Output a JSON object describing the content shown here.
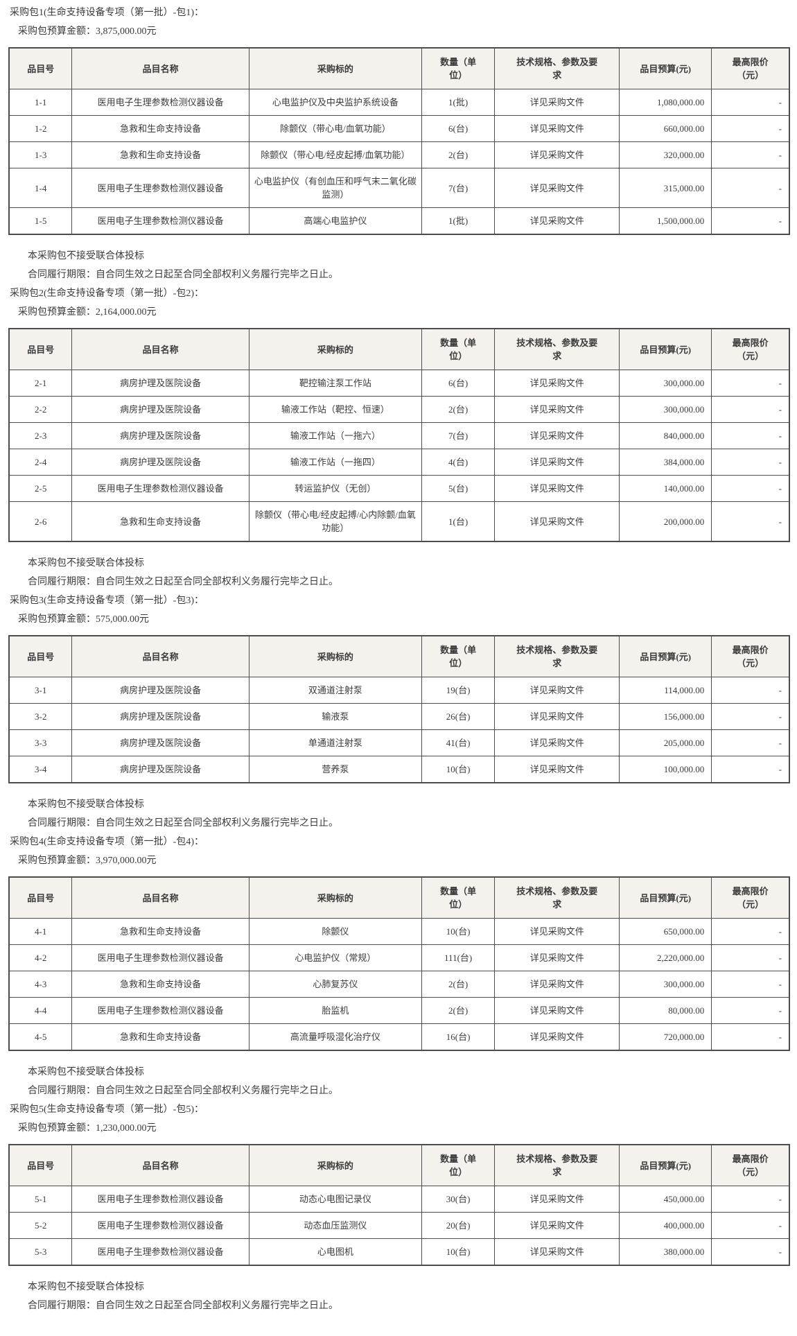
{
  "colors": {
    "header_bg": "#f5f1ec",
    "border": "#4c4c4c",
    "text": "#3b3b3b"
  },
  "columns": [
    {
      "label": "品目号",
      "width": "7.7%",
      "align": "center"
    },
    {
      "label": "品目名称",
      "width": "23.2%",
      "align": "center"
    },
    {
      "label": "采购标的",
      "width": "22.6%",
      "align": "center"
    },
    {
      "label": "数量（单\n位）",
      "width": "9.1%",
      "align": "center"
    },
    {
      "label": "技术规格、参数及要\n求",
      "width": "16.1%",
      "align": "center"
    },
    {
      "label": "品目预算(元)",
      "width": "11.7%",
      "align": "right"
    },
    {
      "label": "最高限价\n（元）",
      "width": "9.7%",
      "align": "right"
    }
  ],
  "sections": [
    {
      "title": "采购包1(生命支持设备专项（第一批）-包1)：",
      "budget": "采购包预算金额：3,875,000.00元",
      "rows": [
        [
          "1-1",
          "医用电子生理参数检测仪器设备",
          "心电监护仪及中央监护系统设备",
          "1(批)",
          "详见采购文件",
          "1,080,000.00",
          "-"
        ],
        [
          "1-2",
          "急救和生命支持设备",
          "除颤仪（带心电/血氧功能）",
          "6(台)",
          "详见采购文件",
          "660,000.00",
          "-"
        ],
        [
          "1-3",
          "急救和生命支持设备",
          "除颤仪（带心电/经皮起搏/血氧功能）",
          "2(台)",
          "详见采购文件",
          "320,000.00",
          "-"
        ],
        [
          "1-4",
          "医用电子生理参数检测仪器设备",
          "心电监护仪（有创血压和呼气末二氧化碳监测）",
          "7(台)",
          "详见采购文件",
          "315,000.00",
          "-"
        ],
        [
          "1-5",
          "医用电子生理参数检测仪器设备",
          "高端心电监护仪",
          "1(批)",
          "详见采购文件",
          "1,500,000.00",
          "-"
        ]
      ],
      "notes": [
        "本采购包不接受联合体投标",
        "合同履行期限：自合同生效之日起至合同全部权利义务履行完毕之日止。"
      ]
    },
    {
      "title": "采购包2(生命支持设备专项（第一批）-包2)：",
      "budget": "采购包预算金额：2,164,000.00元",
      "rows": [
        [
          "2-1",
          "病房护理及医院设备",
          "靶控输注泵工作站",
          "6(台)",
          "详见采购文件",
          "300,000.00",
          "-"
        ],
        [
          "2-2",
          "病房护理及医院设备",
          "输液工作站（靶控、恒速）",
          "2(台)",
          "详见采购文件",
          "300,000.00",
          "-"
        ],
        [
          "2-3",
          "病房护理及医院设备",
          "输液工作站（一拖六）",
          "7(台)",
          "详见采购文件",
          "840,000.00",
          "-"
        ],
        [
          "2-4",
          "病房护理及医院设备",
          "输液工作站（一拖四）",
          "4(台)",
          "详见采购文件",
          "384,000.00",
          "-"
        ],
        [
          "2-5",
          "医用电子生理参数检测仪器设备",
          "转运监护仪（无创）",
          "5(台)",
          "详见采购文件",
          "140,000.00",
          "-"
        ],
        [
          "2-6",
          "急救和生命支持设备",
          "除颤仪（带心电/经皮起搏/心内除颤/血氧功能）",
          "1(台)",
          "详见采购文件",
          "200,000.00",
          "-"
        ]
      ],
      "notes": [
        "本采购包不接受联合体投标",
        "合同履行期限：自合同生效之日起至合同全部权利义务履行完毕之日止。"
      ]
    },
    {
      "title": "采购包3(生命支持设备专项（第一批）-包3)：",
      "budget": "采购包预算金额：575,000.00元",
      "rows": [
        [
          "3-1",
          "病房护理及医院设备",
          "双通道注射泵",
          "19(台)",
          "详见采购文件",
          "114,000.00",
          "-"
        ],
        [
          "3-2",
          "病房护理及医院设备",
          "输液泵",
          "26(台)",
          "详见采购文件",
          "156,000.00",
          "-"
        ],
        [
          "3-3",
          "病房护理及医院设备",
          "单通道注射泵",
          "41(台)",
          "详见采购文件",
          "205,000.00",
          "-"
        ],
        [
          "3-4",
          "病房护理及医院设备",
          "营养泵",
          "10(台)",
          "详见采购文件",
          "100,000.00",
          "-"
        ]
      ],
      "notes": [
        "本采购包不接受联合体投标",
        "合同履行期限：自合同生效之日起至合同全部权利义务履行完毕之日止。"
      ]
    },
    {
      "title": "采购包4(生命支持设备专项（第一批）-包4)：",
      "budget": "采购包预算金额：3,970,000.00元",
      "rows": [
        [
          "4-1",
          "急救和生命支持设备",
          "除颤仪",
          "10(台)",
          "详见采购文件",
          "650,000.00",
          "-"
        ],
        [
          "4-2",
          "医用电子生理参数检测仪器设备",
          "心电监护仪（常规）",
          "111(台)",
          "详见采购文件",
          "2,220,000.00",
          "-"
        ],
        [
          "4-3",
          "急救和生命支持设备",
          "心肺复苏仪",
          "2(台)",
          "详见采购文件",
          "300,000.00",
          "-"
        ],
        [
          "4-4",
          "医用电子生理参数检测仪器设备",
          "胎监机",
          "2(台)",
          "详见采购文件",
          "80,000.00",
          "-"
        ],
        [
          "4-5",
          "急救和生命支持设备",
          "高流量呼吸湿化治疗仪",
          "16(台)",
          "详见采购文件",
          "720,000.00",
          "-"
        ]
      ],
      "notes": [
        "本采购包不接受联合体投标",
        "合同履行期限：自合同生效之日起至合同全部权利义务履行完毕之日止。"
      ]
    },
    {
      "title": "采购包5(生命支持设备专项（第一批）-包5)：",
      "budget": "采购包预算金额：1,230,000.00元",
      "rows": [
        [
          "5-1",
          "医用电子生理参数检测仪器设备",
          "动态心电图记录仪",
          "30(台)",
          "详见采购文件",
          "450,000.00",
          "-"
        ],
        [
          "5-2",
          "医用电子生理参数检测仪器设备",
          "动态血压监测仪",
          "20(台)",
          "详见采购文件",
          "400,000.00",
          "-"
        ],
        [
          "5-3",
          "医用电子生理参数检测仪器设备",
          "心电图机",
          "10(台)",
          "详见采购文件",
          "380,000.00",
          "-"
        ]
      ],
      "notes": [
        "本采购包不接受联合体投标",
        "合同履行期限：自合同生效之日起至合同全部权利义务履行完毕之日止。"
      ]
    }
  ]
}
